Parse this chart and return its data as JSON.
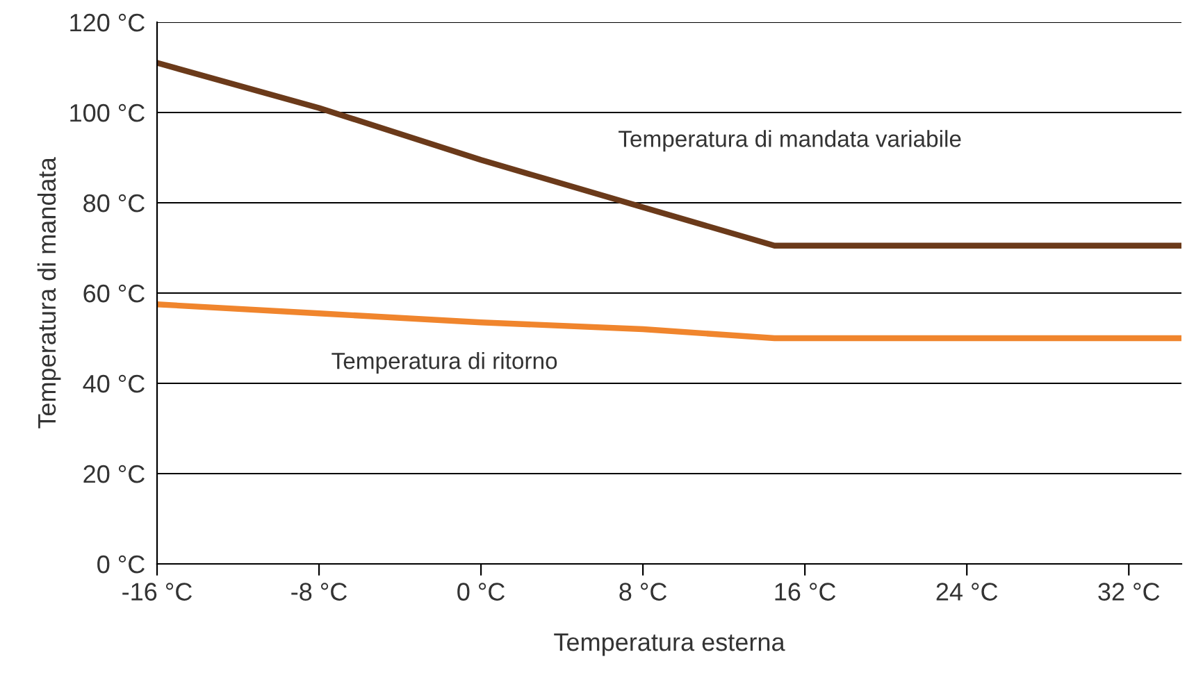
{
  "chart_data": {
    "type": "line",
    "xlabel": "Temperatura esterna",
    "ylabel": "Temperatura di mandata",
    "series": [
      {
        "name": "Temperatura di mandata variabile",
        "color": "#6b3a1a",
        "x": [
          -16,
          -8,
          0,
          8,
          14.5,
          34.6
        ],
        "values": [
          111,
          101,
          89.5,
          79,
          70.5,
          70.5
        ]
      },
      {
        "name": "Temperatura di ritorno",
        "color": "#f0852d",
        "x": [
          -16,
          -8,
          0,
          8,
          14.5,
          34.6
        ],
        "values": [
          57.5,
          55.5,
          53.5,
          52,
          50,
          50
        ]
      }
    ],
    "xlim": [
      -16,
      34.6
    ],
    "ylim": [
      0,
      120
    ],
    "xticks": [
      {
        "value": -16,
        "label": "-16 °C"
      },
      {
        "value": -8,
        "label": "-8 °C"
      },
      {
        "value": 0,
        "label": "0 °C"
      },
      {
        "value": 8,
        "label": "8 °C"
      },
      {
        "value": 16,
        "label": "16 °C"
      },
      {
        "value": 24,
        "label": "24 °C"
      },
      {
        "value": 32,
        "label": "32 °C"
      }
    ],
    "yticks": [
      {
        "value": 0,
        "label": "0 °C"
      },
      {
        "value": 20,
        "label": "20 °C"
      },
      {
        "value": 40,
        "label": "40 °C"
      },
      {
        "value": 60,
        "label": "60 °C"
      },
      {
        "value": 80,
        "label": "80 °C"
      },
      {
        "value": 100,
        "label": "100 °C"
      },
      {
        "value": 120,
        "label": "120 °C"
      }
    ],
    "grid": "y",
    "marker": "none",
    "line_style": "solid",
    "legend": false
  }
}
